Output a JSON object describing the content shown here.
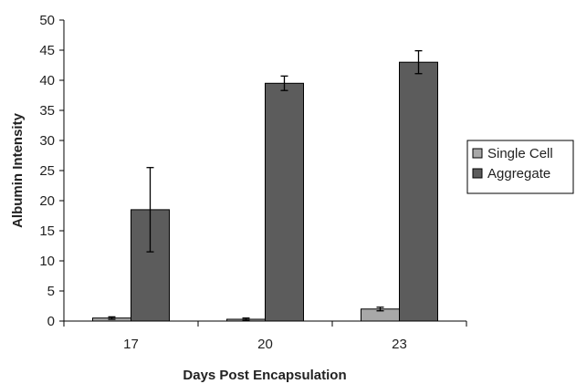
{
  "chart_data": {
    "type": "bar",
    "title": "",
    "xlabel": "Days Post Encapsulation",
    "ylabel": "Albumin Intensity",
    "ylim": [
      0,
      50
    ],
    "yticks": [
      0,
      5,
      10,
      15,
      20,
      25,
      30,
      35,
      40,
      45,
      50
    ],
    "grid": false,
    "legend_position": "right",
    "categories": [
      "17",
      "20",
      "23"
    ],
    "series": [
      {
        "name": "Single Cell",
        "values": [
          0.5,
          0.3,
          2.0
        ],
        "errors": [
          0.2,
          0.2,
          0.3
        ],
        "color": "#a8a8a8"
      },
      {
        "name": "Aggregate",
        "values": [
          18.5,
          39.5,
          43.0
        ],
        "errors": [
          7.0,
          1.2,
          1.9
        ],
        "color": "#5c5c5c"
      }
    ]
  }
}
